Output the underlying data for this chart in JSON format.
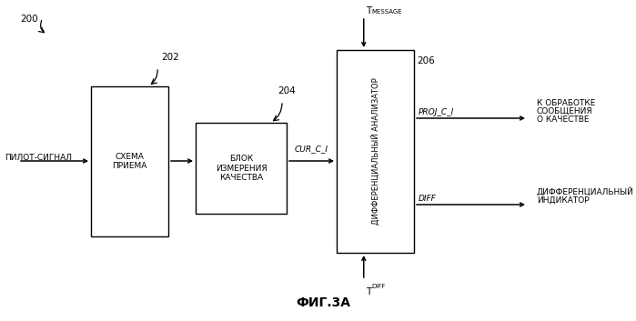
{
  "bg_color": "#ffffff",
  "fig_title": "ФИГ.3А",
  "label_200": "200",
  "label_202": "202",
  "label_204": "204",
  "label_206": "206",
  "box1_text": "СХЕМА\nПРИЕМА",
  "box2_text": "БЛОК\nИЗМЕРЕНИЯ\nКАЧЕСТВА",
  "box3_text": "ДИФФЕРЕНЦИАЛЬНЫЙ АНАЛИЗАТОР",
  "input_label": "ПИЛОТ-СИГНАЛ",
  "cur_c_i": "CUR_C_I",
  "t_message": "T",
  "t_message_sub": "MESSAGE",
  "t_diff": "T",
  "t_diff_sub": "DIFF",
  "proj_c_i": "PROJ_C_I",
  "diff_label": "DIFF",
  "out1_line1": "К ОБРАБОТКЕ",
  "out1_line2": "СООБЩЕНИЯ",
  "out1_line3": "О КАЧЕСТВЕ",
  "out2_line1": "ДИФФЕРЕНЦИАЛЬНЫЙ",
  "out2_line2": "ИНДИКАТОР"
}
